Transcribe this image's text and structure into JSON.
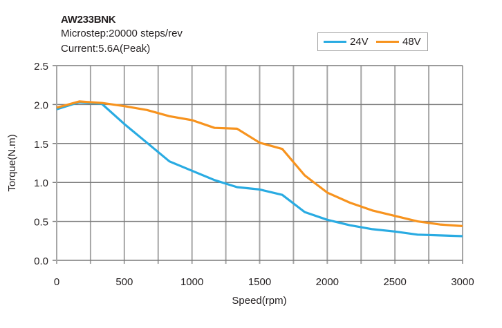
{
  "header": {
    "title": "AW233BNK",
    "microstep": "Microstep:20000 steps/rev",
    "current": "Current:5.6A(Peak)"
  },
  "chart_data": {
    "type": "line",
    "title": "AW233BNK",
    "subtitle": [
      "Microstep:20000 steps/rev",
      "Current:5.6A(Peak)"
    ],
    "xlabel": "Speed(rpm)",
    "ylabel": "Torque(N.m)",
    "xlim": [
      0,
      3000
    ],
    "ylim": [
      0,
      2.5
    ],
    "x_ticks": [
      0,
      500,
      1000,
      1500,
      2000,
      2500,
      3000
    ],
    "x_tick_labels": [
      "0",
      "500",
      "1000",
      "1500",
      "2000",
      "2500",
      "3000"
    ],
    "x_minor_grid_step": 250,
    "y_ticks": [
      0,
      0.5,
      1.0,
      1.5,
      2.0,
      2.5
    ],
    "y_tick_labels": [
      "0.0",
      "0.5",
      "1.0",
      "1.5",
      "2.0",
      "2.5"
    ],
    "grid": true,
    "legend_position": "top-right",
    "x": [
      0,
      167,
      333,
      500,
      667,
      833,
      1000,
      1167,
      1333,
      1500,
      1667,
      1833,
      2000,
      2167,
      2333,
      2500,
      2667,
      2833,
      3000
    ],
    "series": [
      {
        "name": "24V",
        "color": "#29abe2",
        "values": [
          1.94,
          2.03,
          2.01,
          1.75,
          1.51,
          1.27,
          1.15,
          1.03,
          0.94,
          0.91,
          0.84,
          0.62,
          0.52,
          0.45,
          0.4,
          0.37,
          0.33,
          0.32,
          0.31
        ]
      },
      {
        "name": "48V",
        "color": "#f7931e",
        "values": [
          1.96,
          2.04,
          2.02,
          1.98,
          1.93,
          1.85,
          1.8,
          1.7,
          1.69,
          1.51,
          1.43,
          1.09,
          0.87,
          0.74,
          0.64,
          0.57,
          0.5,
          0.46,
          0.44
        ]
      }
    ]
  }
}
